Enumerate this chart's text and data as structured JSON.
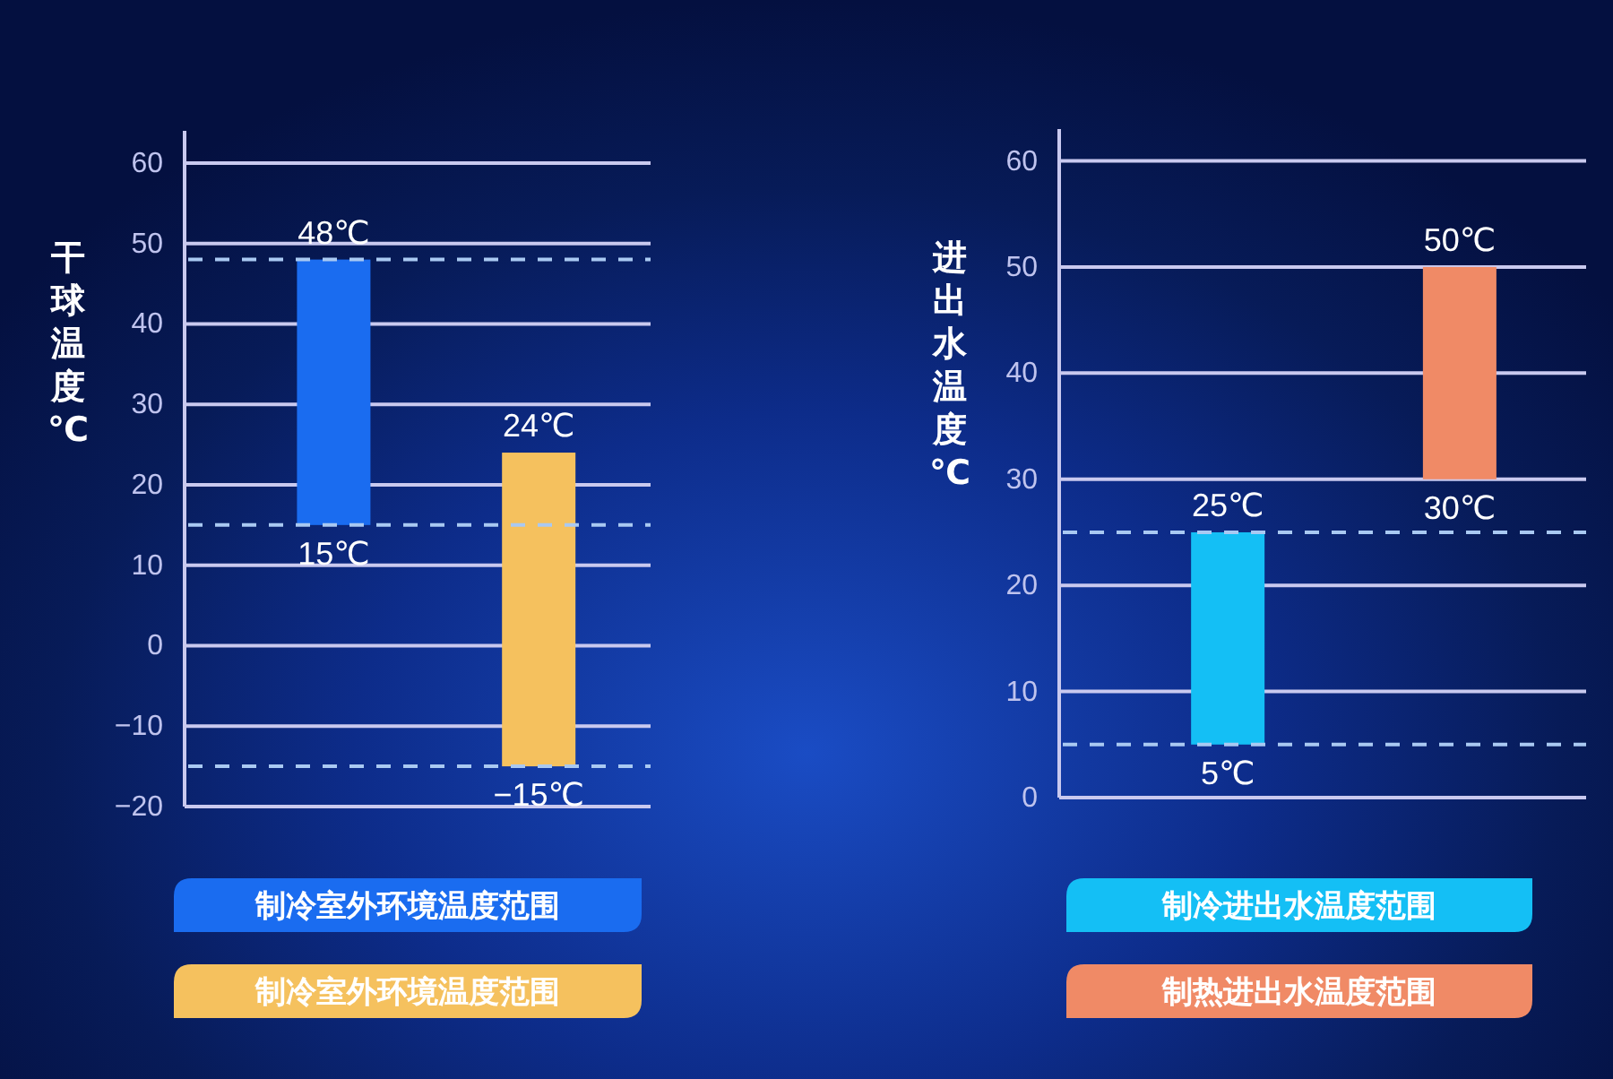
{
  "chart_data": [
    {
      "type": "bar",
      "ylabel": "干球温度℃",
      "categories": [
        null,
        null
      ],
      "series": [
        {
          "name": "制冷室外环境温度范围",
          "color": "#1a6cf0",
          "values": [
            33,
            null
          ],
          "base": [
            15,
            null
          ]
        },
        {
          "name": "制冷室外环境温度范围",
          "color": "#f5c15e",
          "values": [
            null,
            39
          ],
          "base": [
            null,
            -15
          ]
        }
      ],
      "ylim": [
        -20,
        64
      ],
      "yticks": [
        {
          "value": -20,
          "label": "−20"
        },
        {
          "value": -10,
          "label": "−10"
        },
        0,
        10,
        20,
        30,
        40,
        50,
        60
      ],
      "grid": "y",
      "legend": "bottom",
      "ref_lines": [
        {
          "axis": "y",
          "value": 48,
          "color": "#a9c9f2",
          "line_style": "dashed"
        },
        {
          "axis": "y",
          "value": 15,
          "color": "#a9c9f2",
          "line_style": "dashed"
        },
        {
          "axis": "y",
          "value": -15,
          "color": "#a9c9f2",
          "line_style": "dashed"
        }
      ],
      "annotations": [
        {
          "text": "48℃",
          "y": 48
        },
        {
          "text": "15℃",
          "y": 15
        },
        {
          "text": "24℃",
          "y": 24
        },
        {
          "text": "−15℃",
          "y": -15
        }
      ]
    },
    {
      "type": "bar",
      "ylabel": "进出水温度℃",
      "categories": [
        null,
        null
      ],
      "series": [
        {
          "name": "制冷进出水温度范围",
          "color": "#14bff5",
          "values": [
            20,
            null
          ],
          "base": [
            5,
            null
          ]
        },
        {
          "name": "制热进出水温度范围",
          "color": "#f08a66",
          "values": [
            null,
            20
          ],
          "base": [
            null,
            30
          ]
        }
      ],
      "ylim": [
        0,
        63
      ],
      "yticks": [
        0,
        10,
        20,
        30,
        40,
        50,
        60
      ],
      "grid": "y",
      "legend": "bottom",
      "ref_lines": [
        {
          "axis": "y",
          "value": 25,
          "color": "#a9c9f2",
          "line_style": "dashed"
        },
        {
          "axis": "y",
          "value": 5,
          "color": "#a9c9f2",
          "line_style": "dashed"
        }
      ],
      "annotations": [
        {
          "text": "25℃",
          "y": 25
        },
        {
          "text": "5℃",
          "y": 5
        },
        {
          "text": "50℃",
          "y": 50
        },
        {
          "text": "30℃",
          "y": 30
        }
      ]
    }
  ]
}
